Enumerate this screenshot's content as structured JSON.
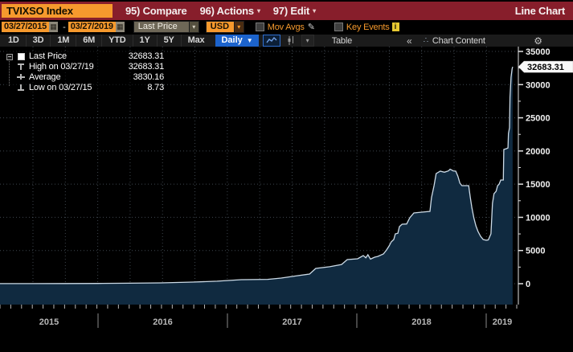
{
  "titlebar": {
    "ticker": "TVIXSO Index",
    "menus": [
      {
        "label": "95) Compare",
        "arrow": false
      },
      {
        "label": "96) Actions",
        "arrow": true
      },
      {
        "label": "97) Edit",
        "arrow": true
      }
    ],
    "mode": "Line Chart"
  },
  "toolbar": {
    "date_from": "03/27/2015",
    "range_sep": "-",
    "date_to": "03/27/2019",
    "price_type": "Last Price",
    "currency": "USD",
    "mov_avgs_label": "Mov Avgs",
    "key_events_label": "Key Events"
  },
  "periodbar": {
    "periods": [
      "1D",
      "3D",
      "1M",
      "6M",
      "YTD",
      "1Y",
      "5Y",
      "Max"
    ],
    "frequency": "Daily",
    "table_label": "Table",
    "collapse_label": "«",
    "chart_content_label": "Chart Content"
  },
  "icons": {
    "calendar": "▦",
    "dropdown": "▾",
    "daily_arrow": "▼",
    "pencil": "✎",
    "info": "i",
    "gear": "⚙",
    "scatter": "∴"
  },
  "legend": {
    "rows": [
      {
        "marker": "square",
        "label": "Last Price",
        "value": "32683.31"
      },
      {
        "marker": "high",
        "label": "High on 03/27/19",
        "value": "32683.31"
      },
      {
        "marker": "avg",
        "label": "Average",
        "value": "3830.16"
      },
      {
        "marker": "low",
        "label": "Low on 03/27/15",
        "value": "8.73"
      }
    ]
  },
  "colors": {
    "maroon": "#871e2b",
    "amber": "#f6992d",
    "blue": "#1c63cc",
    "chart_line": "#ccdae6",
    "chart_fill": "#102a40",
    "grid": "#8899aa",
    "axis_line": "#e0e0e0",
    "axis_text": "#f0f0f0",
    "year_text": "#b8b8b8",
    "tag_bg": "#f8f8f8",
    "tag_text": "#000000"
  },
  "chart_data": {
    "type": "area",
    "title": "TVIXSO Index Last Price",
    "x_start": "2015-03-27",
    "x_end": "2019-03-27",
    "x_year_labels": [
      "2015",
      "2016",
      "2017",
      "2018",
      "2019"
    ],
    "ylim": [
      0,
      35000
    ],
    "y_ticks": [
      0,
      5000,
      10000,
      15000,
      20000,
      25000,
      30000,
      35000
    ],
    "grid": "dotted",
    "legend_position": "top-left",
    "last_price": 32683.31,
    "last_price_label": "32683.31",
    "high": {
      "date": "03/27/19",
      "value": 32683.31
    },
    "average": 3830.16,
    "low": {
      "date": "03/27/15",
      "value": 8.73
    },
    "points": [
      [
        0.0,
        9
      ],
      [
        0.062,
        12
      ],
      [
        0.124,
        20
      ],
      [
        0.19,
        40
      ],
      [
        0.249,
        70
      ],
      [
        0.311,
        120
      ],
      [
        0.373,
        240
      ],
      [
        0.42,
        380
      ],
      [
        0.467,
        600
      ],
      [
        0.518,
        650
      ],
      [
        0.544,
        850
      ],
      [
        0.575,
        1200
      ],
      [
        0.599,
        1450
      ],
      [
        0.611,
        2300
      ],
      [
        0.638,
        2550
      ],
      [
        0.661,
        2900
      ],
      [
        0.672,
        3630
      ],
      [
        0.692,
        3750
      ],
      [
        0.703,
        4240
      ],
      [
        0.708,
        3900
      ],
      [
        0.712,
        4360
      ],
      [
        0.717,
        3700
      ],
      [
        0.725,
        4000
      ],
      [
        0.731,
        4100
      ],
      [
        0.742,
        4480
      ],
      [
        0.748,
        5090
      ],
      [
        0.753,
        5690
      ],
      [
        0.757,
        6300
      ],
      [
        0.762,
        6660
      ],
      [
        0.765,
        7510
      ],
      [
        0.77,
        7600
      ],
      [
        0.773,
        8600
      ],
      [
        0.778,
        8960
      ],
      [
        0.787,
        9000
      ],
      [
        0.793,
        9930
      ],
      [
        0.801,
        10660
      ],
      [
        0.816,
        10780
      ],
      [
        0.832,
        10900
      ],
      [
        0.835,
        12960
      ],
      [
        0.84,
        14770
      ],
      [
        0.844,
        16590
      ],
      [
        0.852,
        16950
      ],
      [
        0.86,
        16800
      ],
      [
        0.868,
        17000
      ],
      [
        0.871,
        17250
      ],
      [
        0.877,
        17000
      ],
      [
        0.882,
        16950
      ],
      [
        0.886,
        16220
      ],
      [
        0.89,
        15140
      ],
      [
        0.894,
        14770
      ],
      [
        0.907,
        14770
      ],
      [
        0.91,
        13080
      ],
      [
        0.913,
        11500
      ],
      [
        0.917,
        9930
      ],
      [
        0.921,
        8720
      ],
      [
        0.925,
        7870
      ],
      [
        0.93,
        7150
      ],
      [
        0.935,
        6660
      ],
      [
        0.941,
        6540
      ],
      [
        0.945,
        6600
      ],
      [
        0.95,
        7510
      ],
      [
        0.953,
        12110
      ],
      [
        0.956,
        13560
      ],
      [
        0.96,
        13930
      ],
      [
        0.963,
        14770
      ],
      [
        0.966,
        15010
      ],
      [
        0.969,
        15620
      ],
      [
        0.974,
        15620
      ],
      [
        0.975,
        20220
      ],
      [
        0.98,
        20340
      ],
      [
        0.983,
        20460
      ],
      [
        0.984,
        22640
      ],
      [
        0.986,
        23490
      ],
      [
        0.987,
        28100
      ],
      [
        0.989,
        31120
      ],
      [
        0.991,
        32330
      ],
      [
        0.992,
        32683.31
      ]
    ]
  }
}
